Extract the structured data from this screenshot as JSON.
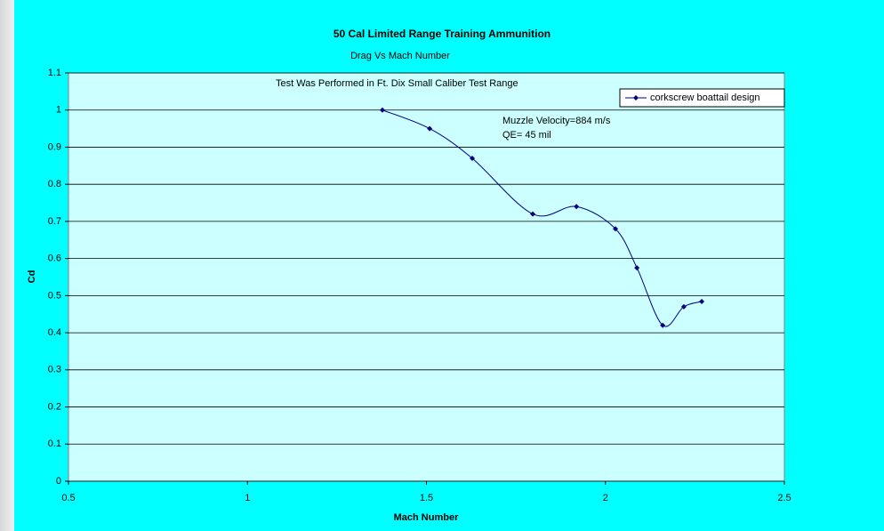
{
  "chart_data": {
    "type": "line",
    "title": "50 Cal Limited Range Training Ammunition",
    "subtitle": "Drag Vs Mach Number",
    "annotations": [
      "Test Was Performed in Ft. Dix Small Caliber Test Range",
      "Muzzle Velocity=884 m/s",
      "QE= 45 mil"
    ],
    "x_label": "Mach Number",
    "y_label": "Cd",
    "series": [
      {
        "name": "corkscrew boattail design",
        "color": "#000080",
        "x": [
          1.377,
          1.509,
          1.628,
          1.797,
          1.919,
          2.028,
          2.088,
          2.16,
          2.219,
          2.269
        ],
        "values": [
          1.0,
          0.95,
          0.87,
          0.72,
          0.74,
          0.68,
          0.575,
          0.42,
          0.47,
          0.484
        ]
      }
    ],
    "xlim": [
      0.5,
      2.5
    ],
    "xticks": [
      0.5,
      1,
      1.5,
      2,
      2.5
    ],
    "ylim": [
      0,
      1.1
    ],
    "yticks": [
      0,
      0.1,
      0.2,
      0.3,
      0.4,
      0.5,
      0.6,
      0.7,
      0.8,
      0.9,
      1,
      1.1
    ],
    "grid": true,
    "legend": "upper right"
  }
}
